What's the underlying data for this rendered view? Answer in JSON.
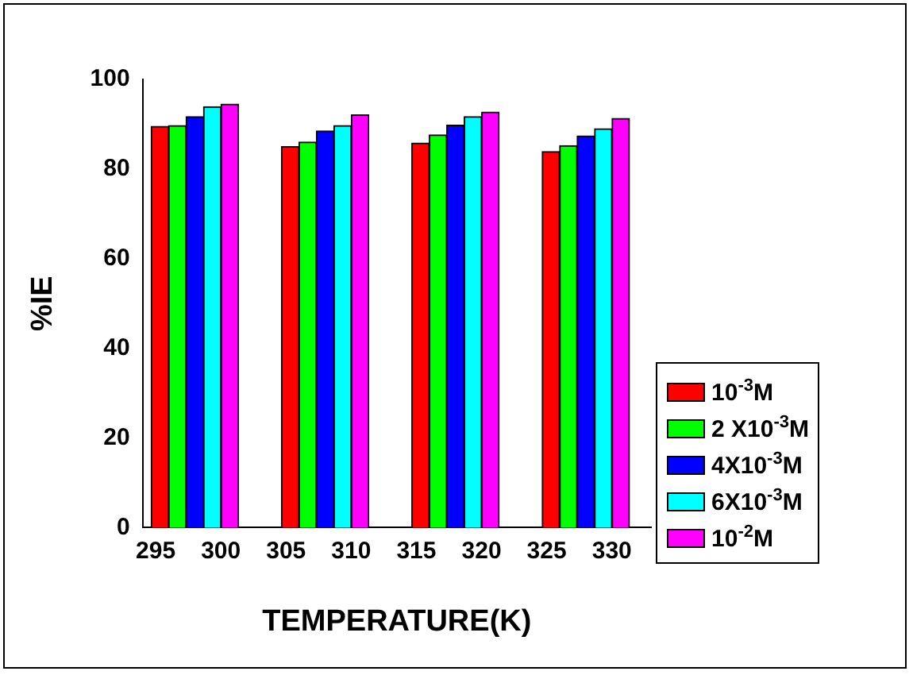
{
  "chart_data": {
    "type": "bar",
    "xlabel": "TEMPERATURE(K)",
    "ylabel": "%IE",
    "x": [
      298,
      308,
      318,
      328
    ],
    "xlim": [
      294,
      333
    ],
    "xticks": [
      295,
      300,
      305,
      310,
      315,
      320,
      325,
      330
    ],
    "ylim": [
      0,
      100
    ],
    "yticks": [
      0,
      20,
      40,
      60,
      80,
      100
    ],
    "series": [
      {
        "name": "10$^{-3}$M",
        "color": "#ff0000",
        "values": [
          89.5,
          85.0,
          85.8,
          83.9
        ]
      },
      {
        "name": "2 X10$^{-3}$M",
        "color": "#00ff00",
        "values": [
          89.7,
          86.0,
          87.6,
          85.2
        ]
      },
      {
        "name": "4X10$^{-3}$M",
        "color": "#0000ff",
        "values": [
          91.7,
          88.5,
          89.8,
          87.4
        ]
      },
      {
        "name": "6X10$^{-3}$M",
        "color": "#00ffff",
        "values": [
          93.9,
          89.7,
          91.7,
          89.0
        ]
      },
      {
        "name": "10$^{-2}$M",
        "color": "#ff00ff",
        "values": [
          94.5,
          92.1,
          92.7,
          91.3
        ]
      }
    ],
    "grid": false,
    "legend": "right"
  }
}
